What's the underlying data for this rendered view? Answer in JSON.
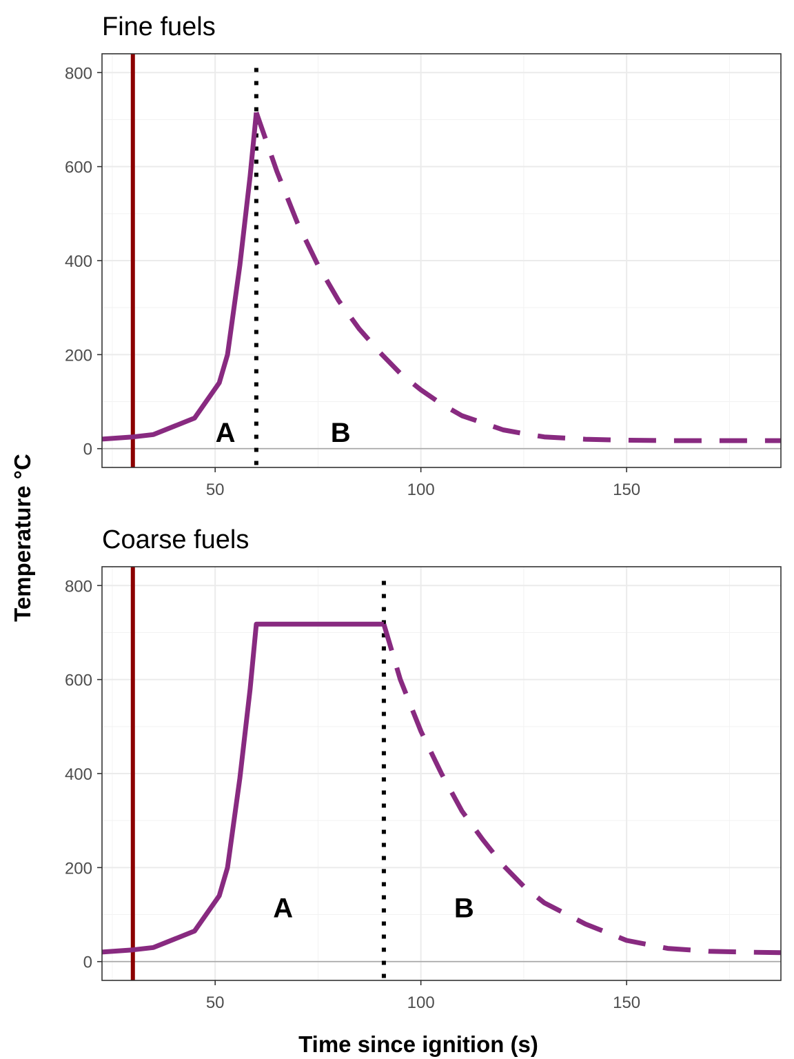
{
  "chart_data": [
    {
      "type": "line",
      "title": "Fine fuels",
      "xlim": [
        22.5,
        187.5
      ],
      "ylim": [
        -40,
        840
      ],
      "x_ticks": [
        50,
        100,
        150
      ],
      "y_ticks": [
        0,
        200,
        400,
        600,
        800
      ],
      "grid": true,
      "ignition_x": 30,
      "ignition_color": "#8b0000",
      "transition_x": 60,
      "series_color": "#882a80",
      "heating": {
        "x": [
          22,
          30,
          35,
          45,
          51,
          53,
          56,
          58.5,
          60
        ],
        "y": [
          20,
          25,
          30,
          65,
          140,
          200,
          390,
          580,
          715
        ]
      },
      "cooling": {
        "x": [
          60,
          65,
          70,
          75,
          80,
          85,
          90,
          95,
          100,
          105,
          110,
          115,
          120,
          125,
          130,
          140,
          150,
          160,
          170,
          180,
          187.5
        ],
        "y": [
          715,
          590,
          480,
          390,
          315,
          255,
          205,
          160,
          125,
          95,
          70,
          55,
          40,
          32,
          25,
          20,
          18,
          17,
          17,
          17,
          17
        ]
      },
      "zone_labels": [
        {
          "text": "A",
          "x": 52.5,
          "y": 35
        },
        {
          "text": "B",
          "x": 80.5,
          "y": 35
        }
      ]
    },
    {
      "type": "line",
      "title": "Coarse fuels",
      "xlim": [
        22.5,
        187.5
      ],
      "ylim": [
        -40,
        840
      ],
      "x_ticks": [
        50,
        100,
        150
      ],
      "y_ticks": [
        0,
        200,
        400,
        600,
        800
      ],
      "grid": true,
      "ignition_x": 30,
      "ignition_color": "#8b0000",
      "transition_x": 91,
      "series_color": "#882a80",
      "heating": {
        "x": [
          22,
          30,
          35,
          45,
          51,
          53,
          56,
          58.5,
          60,
          91
        ],
        "y": [
          20,
          25,
          30,
          65,
          140,
          200,
          390,
          580,
          718,
          718
        ]
      },
      "cooling": {
        "x": [
          91,
          95,
          100,
          105,
          110,
          115,
          120,
          125,
          130,
          140,
          150,
          160,
          170,
          180,
          187.5
        ],
        "y": [
          718,
          600,
          490,
          400,
          320,
          260,
          205,
          160,
          125,
          80,
          45,
          28,
          22,
          20,
          19
        ]
      },
      "zone_labels": [
        {
          "text": "A",
          "x": 66.5,
          "y": 115
        },
        {
          "text": "B",
          "x": 110.5,
          "y": 115
        }
      ]
    }
  ],
  "axes": {
    "xlabel": "Time since ignition (s)",
    "ylabel": "Temperature °C"
  }
}
